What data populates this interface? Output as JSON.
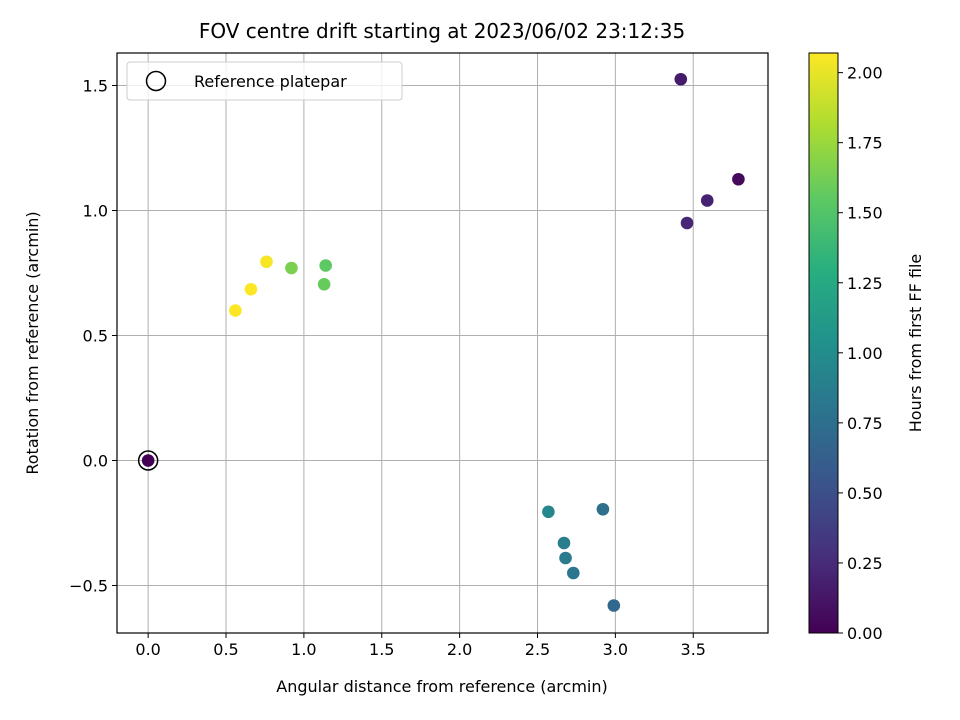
{
  "chart_data": {
    "type": "scatter",
    "title": "FOV centre drift starting at 2023/06/02 23:12:35",
    "xlabel": "Angular distance from reference (arcmin)",
    "ylabel": "Rotation from reference (arcmin)",
    "xlim": [
      -0.2,
      3.98
    ],
    "ylim": [
      -0.69,
      1.63
    ],
    "xticks": [
      0.0,
      0.5,
      1.0,
      1.5,
      2.0,
      2.5,
      3.0,
      3.5
    ],
    "xtick_labels": [
      "0.0",
      "0.5",
      "1.0",
      "1.5",
      "2.0",
      "2.5",
      "3.0",
      "3.5"
    ],
    "yticks": [
      -0.5,
      0.0,
      0.5,
      1.0,
      1.5
    ],
    "ytick_labels": [
      "−0.5",
      "0.0",
      "0.5",
      "1.0",
      "1.5"
    ],
    "grid": true,
    "legend": {
      "position": "upper-left",
      "entries": [
        "Reference platepar"
      ]
    },
    "reference_point": {
      "x": 0.0,
      "y": 0.0
    },
    "colorbar": {
      "label": "Hours from first FF file",
      "colormap": "viridis",
      "range": [
        0.0,
        2.07
      ],
      "ticks": [
        0.0,
        0.25,
        0.5,
        0.75,
        1.0,
        1.25,
        1.5,
        1.75,
        2.0
      ],
      "tick_labels": [
        "0.00",
        "0.25",
        "0.50",
        "0.75",
        "1.00",
        "1.25",
        "1.50",
        "1.75",
        "2.00"
      ]
    },
    "points": [
      {
        "x": 0.0,
        "y": 0.0,
        "hours": 0.0
      },
      {
        "x": 3.79,
        "y": 1.125,
        "hours": 0.05
      },
      {
        "x": 3.42,
        "y": 1.525,
        "hours": 0.15
      },
      {
        "x": 3.59,
        "y": 1.04,
        "hours": 0.2
      },
      {
        "x": 3.46,
        "y": 0.95,
        "hours": 0.22
      },
      {
        "x": 2.99,
        "y": -0.58,
        "hours": 0.7
      },
      {
        "x": 2.92,
        "y": -0.195,
        "hours": 0.75
      },
      {
        "x": 2.73,
        "y": -0.45,
        "hours": 0.8
      },
      {
        "x": 2.68,
        "y": -0.39,
        "hours": 0.85
      },
      {
        "x": 2.67,
        "y": -0.33,
        "hours": 0.88
      },
      {
        "x": 2.57,
        "y": -0.205,
        "hours": 0.95
      },
      {
        "x": 1.14,
        "y": 0.78,
        "hours": 1.55
      },
      {
        "x": 1.13,
        "y": 0.705,
        "hours": 1.58
      },
      {
        "x": 0.92,
        "y": 0.77,
        "hours": 1.65
      },
      {
        "x": 0.76,
        "y": 0.795,
        "hours": 2.05
      },
      {
        "x": 0.66,
        "y": 0.685,
        "hours": 2.07
      },
      {
        "x": 0.56,
        "y": 0.6,
        "hours": 2.07
      }
    ]
  }
}
